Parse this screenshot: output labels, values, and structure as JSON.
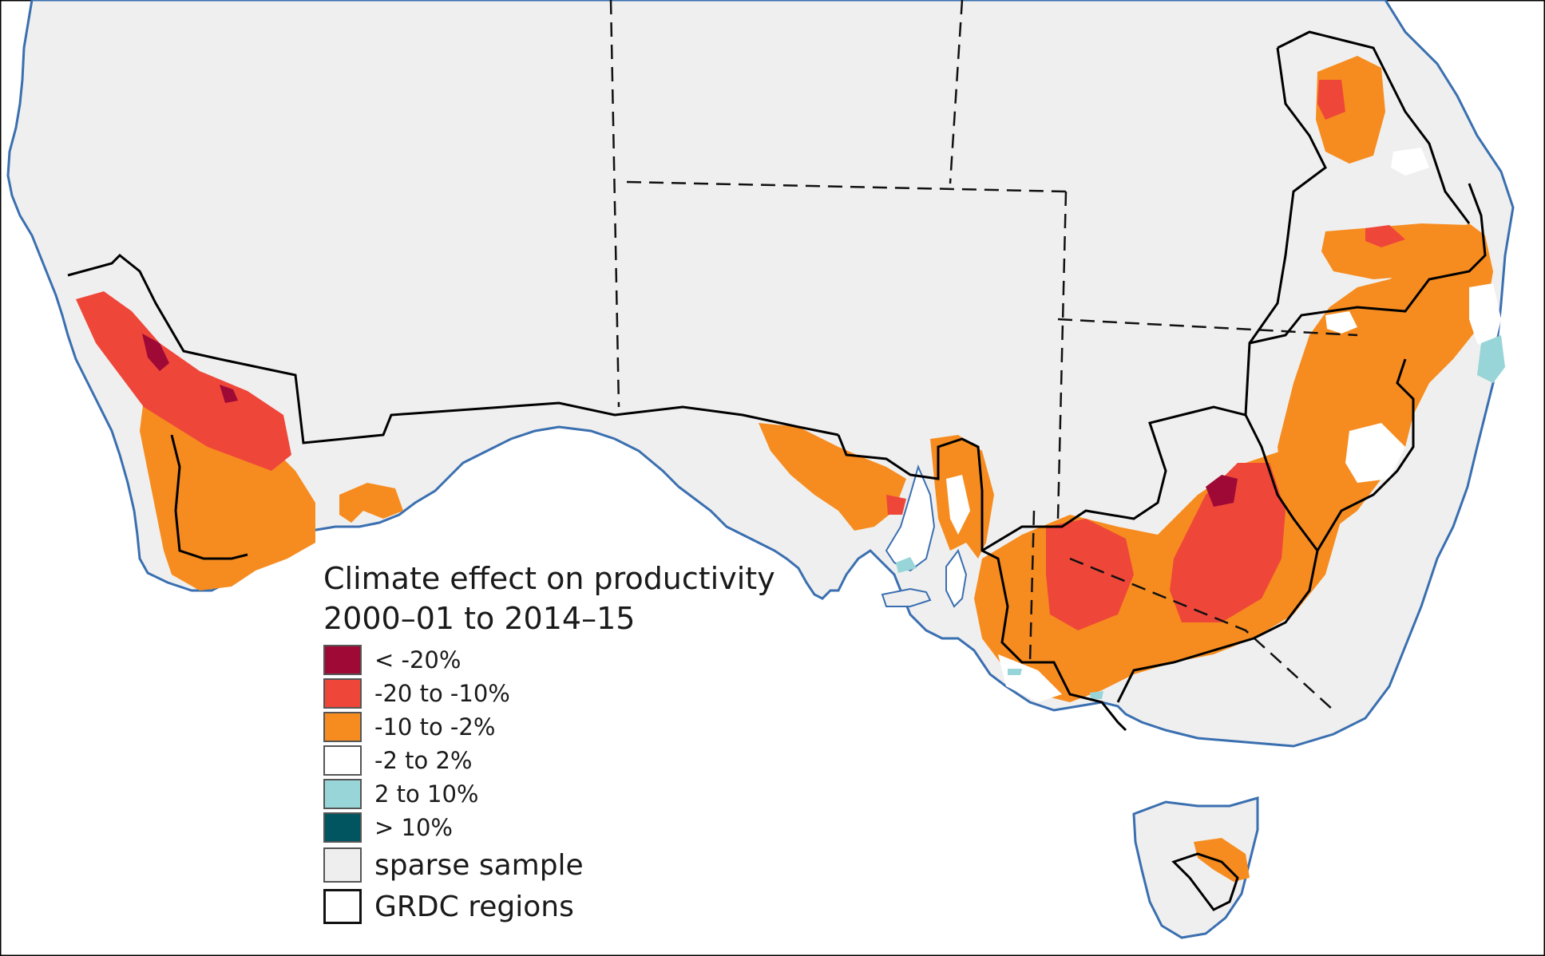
{
  "legend": {
    "title_line1": "Climate effect on productivity",
    "title_line2": "2000–01 to 2014–15",
    "classes": [
      {
        "label": "< -20%",
        "color": "#9e0a35"
      },
      {
        "label": "-20 to -10%",
        "color": "#ef463a"
      },
      {
        "label": "-10 to -2%",
        "color": "#f68c1f"
      },
      {
        "label": "-2 to 2%",
        "color": "#ffffff"
      },
      {
        "label": "2 to 10%",
        "color": "#97d5d8"
      },
      {
        "label": "> 10%",
        "color": "#005561"
      }
    ],
    "sparse": {
      "label": "sparse sample",
      "color": "#eeeeee"
    },
    "regions": {
      "label": "GRDC regions"
    }
  },
  "colors": {
    "land": "#efefef",
    "sea": "#ffffff",
    "coastline": "#3a6fb0",
    "border": "#111111"
  }
}
